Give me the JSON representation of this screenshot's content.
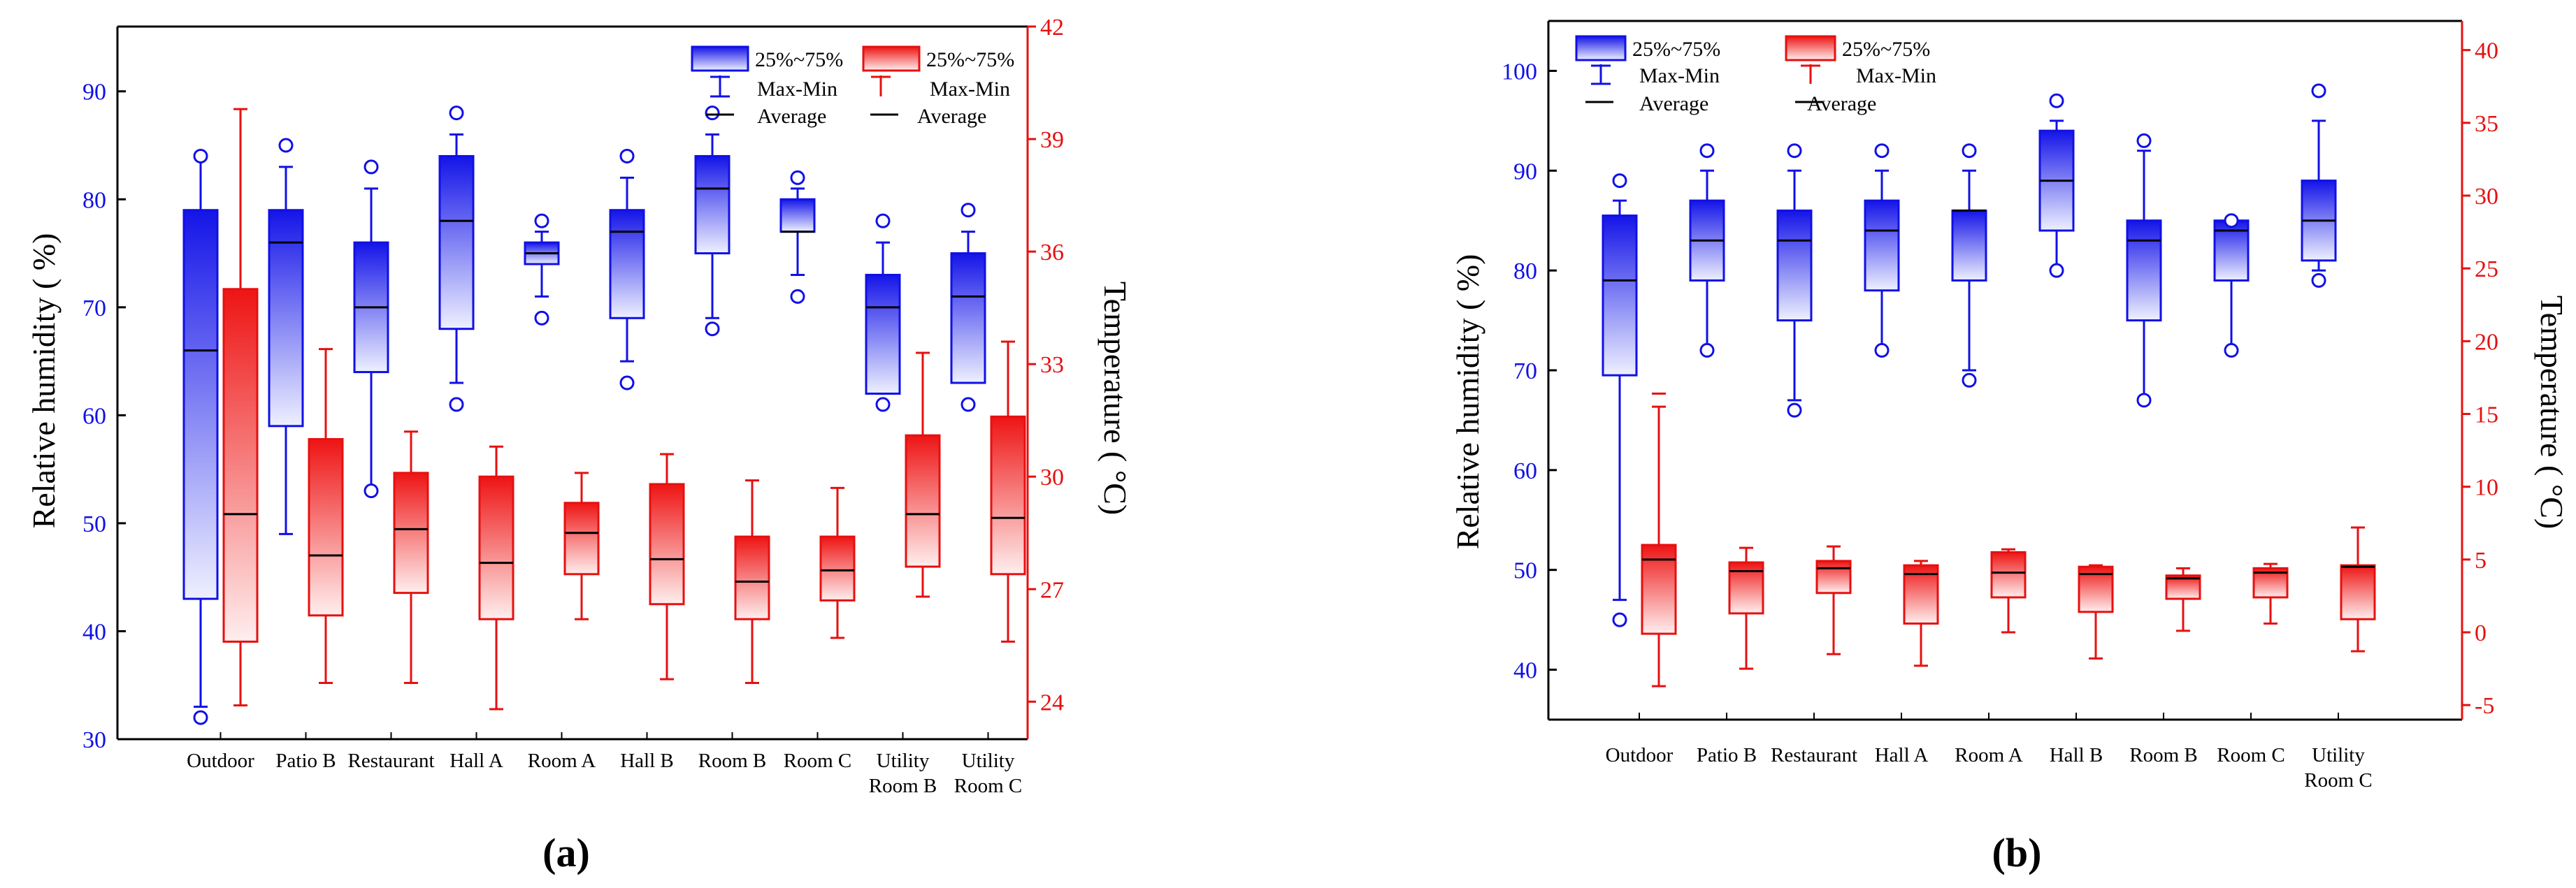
{
  "colors": {
    "humidity": "#1010e6",
    "humidity_light": "#e6e9ff",
    "temperature": "#e61010",
    "temperature_light": "#ffe6e6",
    "axis": "#000000",
    "average": "#000000"
  },
  "legend": {
    "box_label": "25%~75%",
    "whisker_label": "Max-Min",
    "average_label": "Average"
  },
  "chart_data": [
    {
      "panel_label": "(a)",
      "type": "box",
      "categories": [
        "Outdoor",
        "Patio B",
        "Restaurant",
        "Hall A",
        "Room A",
        "Hall B",
        "Room B",
        "Room C",
        "Utility Room B",
        "Utility Room C"
      ],
      "category_lines": [
        [
          "Outdoor"
        ],
        [
          "Patio B"
        ],
        [
          "Restaurant"
        ],
        [
          "Hall A"
        ],
        [
          "Room A"
        ],
        [
          "Hall B"
        ],
        [
          "Room B"
        ],
        [
          "Room C"
        ],
        [
          "Utility",
          "Room B"
        ],
        [
          "Utility",
          "Room C"
        ]
      ],
      "ylabel": "Relative humidity ( %)",
      "y2label": "Temperature ( °C)",
      "ylim": [
        30,
        96
      ],
      "yticks": [
        30,
        40,
        50,
        60,
        70,
        80,
        90
      ],
      "y2lim": [
        23,
        42
      ],
      "y2ticks": [
        24,
        27,
        30,
        33,
        36,
        39,
        42
      ],
      "humidity": [
        {
          "min": 33,
          "q1": 43,
          "avg": 66,
          "q3": 79,
          "max": 84,
          "out_low": 32,
          "out_high": 84
        },
        {
          "min": 49,
          "q1": 59,
          "avg": 76,
          "q3": 79,
          "max": 83,
          "out_low": null,
          "out_high": 85
        },
        {
          "min": 53,
          "q1": 64,
          "avg": 70,
          "q3": 76,
          "max": 81,
          "out_low": 53,
          "out_high": 83
        },
        {
          "min": 63,
          "q1": 68,
          "avg": 78,
          "q3": 84,
          "max": 86,
          "out_low": 61,
          "out_high": 88
        },
        {
          "min": 71,
          "q1": 74,
          "avg": 75,
          "q3": 76,
          "max": 77,
          "out_low": 69,
          "out_high": 78
        },
        {
          "min": 65,
          "q1": 69,
          "avg": 77,
          "q3": 79,
          "max": 82,
          "out_low": 63,
          "out_high": 84
        },
        {
          "min": 69,
          "q1": 75,
          "avg": 81,
          "q3": 84,
          "max": 86,
          "out_low": 68,
          "out_high": 88
        },
        {
          "min": 73,
          "q1": 77,
          "avg": 77,
          "q3": 80,
          "max": 81,
          "out_low": 71,
          "out_high": 82
        },
        {
          "min": 62,
          "q1": 62,
          "avg": 70,
          "q3": 73,
          "max": 76,
          "out_low": 61,
          "out_high": 78
        },
        {
          "min": 63,
          "q1": 63,
          "avg": 71,
          "q3": 75,
          "max": 77,
          "out_low": 61,
          "out_high": 79
        }
      ],
      "temperature": [
        {
          "min": 23.9,
          "q1": 25.6,
          "avg": 29.0,
          "q3": 35.0,
          "max": 39.8
        },
        {
          "min": 24.5,
          "q1": 26.3,
          "avg": 27.9,
          "q3": 31.0,
          "max": 33.4
        },
        {
          "min": 24.5,
          "q1": 26.9,
          "avg": 28.6,
          "q3": 30.1,
          "max": 31.2
        },
        {
          "min": 23.8,
          "q1": 26.2,
          "avg": 27.7,
          "q3": 30.0,
          "max": 30.8
        },
        {
          "min": 26.2,
          "q1": 27.4,
          "avg": 28.5,
          "q3": 29.3,
          "max": 30.1
        },
        {
          "min": 24.6,
          "q1": 26.6,
          "avg": 27.8,
          "q3": 29.8,
          "max": 30.6
        },
        {
          "min": 24.5,
          "q1": 26.2,
          "avg": 27.2,
          "q3": 28.4,
          "max": 29.9
        },
        {
          "min": 25.7,
          "q1": 26.7,
          "avg": 27.5,
          "q3": 28.4,
          "max": 29.7
        },
        {
          "min": 26.8,
          "q1": 27.6,
          "avg": 29.0,
          "q3": 31.1,
          "max": 33.3
        },
        {
          "min": 25.6,
          "q1": 27.4,
          "avg": 28.9,
          "q3": 31.6,
          "max": 33.6
        }
      ]
    },
    {
      "panel_label": "(b)",
      "type": "box",
      "categories": [
        "Outdoor",
        "Patio B",
        "Restaurant",
        "Hall A",
        "Room A",
        "Hall B",
        "Room B",
        "Room C",
        "Utility Room C"
      ],
      "category_lines": [
        [
          "Outdoor"
        ],
        [
          "Patio B"
        ],
        [
          "Restaurant"
        ],
        [
          "Hall A"
        ],
        [
          "Room A"
        ],
        [
          "Hall B"
        ],
        [
          "Room B"
        ],
        [
          "Room C"
        ],
        [
          "Utility",
          "Room C"
        ]
      ],
      "ylabel": "Relative humidity ( %)",
      "y2label": "Temperature ( °C)",
      "ylim": [
        35,
        105
      ],
      "yticks": [
        40,
        50,
        60,
        70,
        80,
        90,
        100
      ],
      "y2lim": [
        -6,
        42
      ],
      "y2ticks": [
        -5,
        0,
        5,
        10,
        15,
        20,
        25,
        30,
        35,
        40
      ],
      "humidity": [
        {
          "min": 47,
          "q1": 69.5,
          "avg": 79,
          "q3": 85.5,
          "max": 87,
          "out_low": 45,
          "out_high": 89
        },
        {
          "min": 72,
          "q1": 79,
          "avg": 83,
          "q3": 87,
          "max": 90,
          "out_low": 72,
          "out_high": 92
        },
        {
          "min": 67,
          "q1": 75,
          "avg": 83,
          "q3": 86,
          "max": 90,
          "out_low": 66,
          "out_high": 92
        },
        {
          "min": 72,
          "q1": 78,
          "avg": 84,
          "q3": 87,
          "max": 90,
          "out_low": 72,
          "out_high": 92
        },
        {
          "min": 70,
          "q1": 79,
          "avg": 86,
          "q3": 86,
          "max": 90,
          "out_low": 69,
          "out_high": 92
        },
        {
          "min": 80,
          "q1": 84,
          "avg": 89,
          "q3": 94,
          "max": 95,
          "out_low": 80,
          "out_high": 97
        },
        {
          "min": 67,
          "q1": 75,
          "avg": 83,
          "q3": 85,
          "max": 92,
          "out_low": 67,
          "out_high": 93
        },
        {
          "min": 72,
          "q1": 79,
          "avg": 84,
          "q3": 85,
          "max": 85,
          "out_low": 72,
          "out_high": 85
        },
        {
          "min": 80,
          "q1": 81,
          "avg": 85,
          "q3": 89,
          "max": 95,
          "out_low": 79,
          "out_high": 98
        }
      ],
      "temperature": [
        {
          "min": -3.7,
          "q1": -0.1,
          "avg": 5.0,
          "q3": 6.0,
          "max": 15.5,
          "cap": 16.4
        },
        {
          "min": -2.5,
          "q1": 1.3,
          "avg": 4.2,
          "q3": 4.8,
          "max": 5.8
        },
        {
          "min": -1.5,
          "q1": 2.7,
          "avg": 4.4,
          "q3": 4.9,
          "max": 5.9
        },
        {
          "min": -2.3,
          "q1": 0.6,
          "avg": 4.0,
          "q3": 4.6,
          "max": 4.9
        },
        {
          "min": 0.0,
          "q1": 2.4,
          "avg": 4.1,
          "q3": 5.5,
          "max": 5.7
        },
        {
          "min": -1.8,
          "q1": 1.4,
          "avg": 4.0,
          "q3": 4.5,
          "max": 4.6
        },
        {
          "min": 0.1,
          "q1": 2.3,
          "avg": 3.7,
          "q3": 3.9,
          "max": 4.4
        },
        {
          "min": 0.6,
          "q1": 2.4,
          "avg": 4.1,
          "q3": 4.4,
          "max": 4.7
        },
        {
          "min": -1.3,
          "q1": 0.9,
          "avg": 4.5,
          "q3": 4.6,
          "max": 7.2
        }
      ]
    }
  ]
}
